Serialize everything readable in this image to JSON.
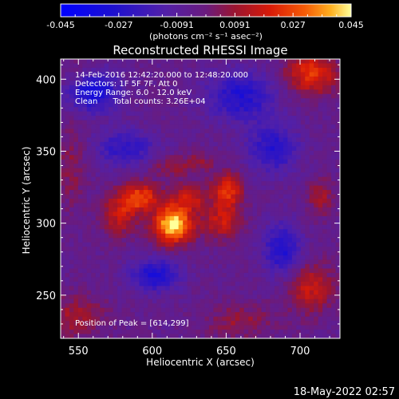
{
  "chart_data": {
    "type": "heatmap",
    "title": "Reconstructed RHESSI Image",
    "xlabel": "Heliocentric X (arcsec)",
    "ylabel": "Heliocentric Y (arcsec)",
    "xlim": [
      538,
      727
    ],
    "ylim": [
      220,
      414
    ],
    "xticks": [
      550,
      600,
      650,
      700
    ],
    "yticks": [
      250,
      300,
      350,
      400
    ],
    "colorbar": {
      "range": [
        -0.045,
        0.045
      ],
      "ticks": [
        "-0.045",
        "-0.027",
        "-0.0091",
        "0.0091",
        "0.027",
        "0.045"
      ],
      "unit_label": "(photons cm⁻² s⁻¹ asec⁻²)"
    },
    "annotations": [
      "14-Feb-2016 12:42:20.000 to 12:48:20.000",
      "Detectors: 1F 5F 7F, Att 0",
      "Energy Range: 6.0 - 12.0 keV",
      "Clean      Total counts: 3.26E+04"
    ],
    "peak_label": "Position of Peak = [614,299]",
    "peak": [
      614,
      299
    ],
    "sources": [
      {
        "x": 614,
        "y": 299,
        "sx": 9,
        "sy": 9,
        "amp": 0.05
      },
      {
        "x": 592,
        "y": 318,
        "sx": 9,
        "sy": 7,
        "amp": 0.03
      },
      {
        "x": 578,
        "y": 306,
        "sx": 8,
        "sy": 10,
        "amp": 0.02
      },
      {
        "x": 625,
        "y": 318,
        "sx": 9,
        "sy": 7,
        "amp": 0.02
      },
      {
        "x": 651,
        "y": 322,
        "sx": 7,
        "sy": 9,
        "amp": 0.028
      },
      {
        "x": 647,
        "y": 300,
        "sx": 9,
        "sy": 8,
        "amp": 0.02
      },
      {
        "x": 612,
        "y": 340,
        "sx": 10,
        "sy": 5,
        "amp": 0.012
      },
      {
        "x": 632,
        "y": 342,
        "sx": 7,
        "sy": 5,
        "amp": 0.01
      },
      {
        "x": 708,
        "y": 404,
        "sx": 12,
        "sy": 10,
        "amp": 0.028
      },
      {
        "x": 714,
        "y": 318,
        "sx": 6,
        "sy": 9,
        "amp": 0.014
      },
      {
        "x": 707,
        "y": 255,
        "sx": 11,
        "sy": 12,
        "amp": 0.02
      },
      {
        "x": 660,
        "y": 232,
        "sx": 16,
        "sy": 8,
        "amp": 0.012
      },
      {
        "x": 548,
        "y": 235,
        "sx": 14,
        "sy": 10,
        "amp": 0.014
      },
      {
        "x": 545,
        "y": 340,
        "sx": 7,
        "sy": 20,
        "amp": 0.01
      },
      {
        "x": 552,
        "y": 404,
        "sx": 10,
        "sy": 7,
        "amp": 0.008
      }
    ],
    "negative_sources": [
      {
        "x": 560,
        "y": 392,
        "sx": 12,
        "sy": 10,
        "amp": 0.03
      },
      {
        "x": 660,
        "y": 388,
        "sx": 16,
        "sy": 12,
        "amp": 0.024
      },
      {
        "x": 602,
        "y": 264,
        "sx": 12,
        "sy": 8,
        "amp": 0.026
      },
      {
        "x": 688,
        "y": 282,
        "sx": 9,
        "sy": 13,
        "amp": 0.024
      },
      {
        "x": 682,
        "y": 352,
        "sx": 12,
        "sy": 12,
        "amp": 0.022
      },
      {
        "x": 582,
        "y": 352,
        "sx": 14,
        "sy": 9,
        "amp": 0.02
      }
    ]
  },
  "footer_timestamp": "18-May-2022 02:57"
}
